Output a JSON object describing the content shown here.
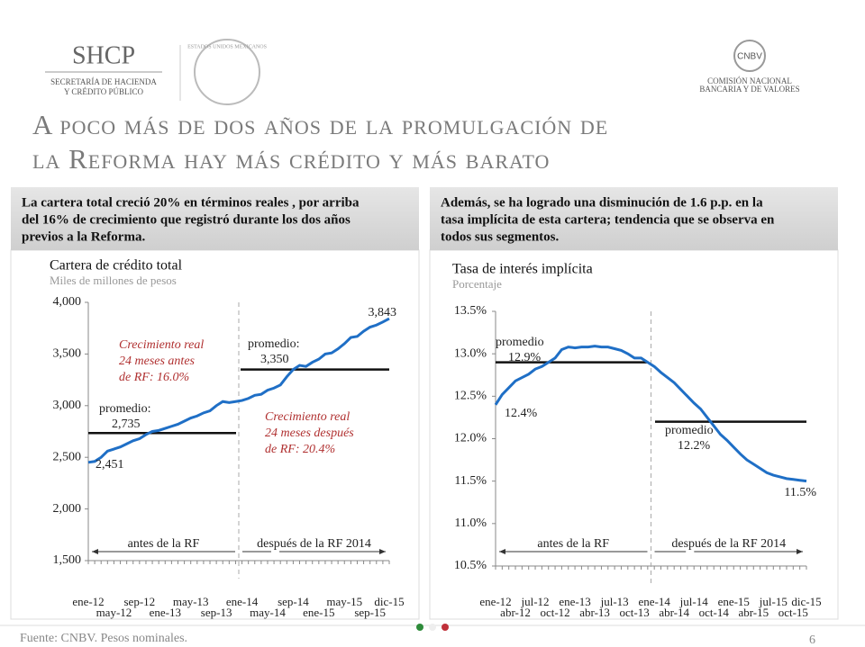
{
  "header": {
    "org": "SHCP",
    "org_sub1": "SECRETARÍA DE HACIENDA",
    "org_sub2": "Y CRÉDITO PÚBLICO",
    "seal": "ESTADOS UNIDOS MEXICANOS",
    "cnbv": "CNBV",
    "cnbv_sub1": "COMISIÓN NACIONAL",
    "cnbv_sub2": "BANCARIA Y DE VALORES"
  },
  "title_lines": [
    "A poco más de dos años de la promulgación de",
    "la Reforma hay más crédito y más barato"
  ],
  "panels": [
    {
      "lines": [
        "La cartera total creció 20% en términos reales , por arriba",
        "del 16% de crecimiento que registró durante los dos años",
        "previos a la Reforma."
      ]
    },
    {
      "lines": [
        "Además, se ha logrado una disminución de 1.6 p.p. en la",
        "tasa implícita de esta cartera; tendencia que se observa en",
        "todos sus segmentos."
      ]
    }
  ],
  "chart_data": [
    {
      "type": "line",
      "title": "Cartera de crédito total",
      "subtitle": "Miles de millones de pesos",
      "categories": [
        "ene-12",
        null,
        null,
        null,
        "may-12",
        null,
        null,
        null,
        "sep-12",
        null,
        null,
        null,
        "ene-13",
        null,
        null,
        null,
        "may-13",
        null,
        null,
        null,
        "sep-13",
        null,
        null,
        null,
        "ene-14",
        null,
        null,
        null,
        "may-14",
        null,
        null,
        null,
        "sep-14",
        null,
        null,
        null,
        "ene-15",
        null,
        null,
        null,
        "may-15",
        null,
        null,
        null,
        "sep-15",
        null,
        null,
        "dic-15"
      ],
      "series": [
        {
          "color": "#1f6fc6",
          "values": [
            2451,
            2460,
            2500,
            2560,
            2580,
            2600,
            2630,
            2660,
            2680,
            2720,
            2750,
            2760,
            2780,
            2800,
            2820,
            2850,
            2880,
            2900,
            2930,
            2950,
            3000,
            3040,
            3030,
            3040,
            3050,
            3070,
            3100,
            3110,
            3150,
            3170,
            3200,
            3280,
            3350,
            3390,
            3380,
            3420,
            3450,
            3500,
            3510,
            3550,
            3600,
            3660,
            3670,
            3720,
            3760,
            3780,
            3810,
            3843
          ],
          "value_labels": [
            "2,451",
            null,
            null,
            null,
            null,
            null,
            null,
            null,
            null,
            null,
            null,
            null,
            null,
            null,
            null,
            null,
            null,
            null,
            null,
            null,
            null,
            null,
            null,
            null,
            null,
            null,
            null,
            null,
            null,
            null,
            null,
            null,
            null,
            null,
            null,
            null,
            null,
            null,
            null,
            null,
            null,
            null,
            null,
            null,
            null,
            null,
            null,
            "3,843"
          ]
        }
      ],
      "ylim": [
        1500,
        4000
      ],
      "yticks": [
        {
          "value": 1500,
          "label": "1,500"
        },
        {
          "value": 2000,
          "label": "2,000"
        },
        {
          "value": 2500,
          "label": "2,500"
        },
        {
          "value": 3000,
          "label": "3,000"
        },
        {
          "value": 3500,
          "label": "3,500"
        },
        {
          "value": 4000,
          "label": "4,000"
        }
      ],
      "averages": [
        {
          "label": "promedio:",
          "value": 2735,
          "value_label": "2,735"
        },
        {
          "label": "promedio:",
          "value": 3350,
          "value_label": "3,350"
        }
      ],
      "annotations": [
        {
          "lines": [
            "Crecimiento real",
            "24 meses antes",
            "de RF: 16.0%"
          ]
        },
        {
          "lines": [
            "Crecimiento real",
            "24 meses después",
            "de RF: 20.4%"
          ]
        }
      ],
      "periods": [
        "antes de la RF",
        "después de la RF 2014"
      ]
    },
    {
      "type": "line",
      "title": "Tasa de interés implícita",
      "subtitle": "Porcentaje",
      "categories": [
        "ene-12",
        null,
        null,
        "abr-12",
        null,
        null,
        "jul-12",
        null,
        null,
        "oct-12",
        null,
        null,
        "ene-13",
        null,
        null,
        "abr-13",
        null,
        null,
        "jul-13",
        null,
        null,
        "oct-13",
        null,
        null,
        "ene-14",
        null,
        null,
        "abr-14",
        null,
        null,
        "jul-14",
        null,
        null,
        "oct-14",
        null,
        null,
        "ene-15",
        null,
        null,
        "abr-15",
        null,
        null,
        "jul-15",
        null,
        null,
        "oct-15",
        null,
        "dic-15"
      ],
      "series": [
        {
          "color": "#1f6fc6",
          "values": [
            12.4,
            12.52,
            12.6,
            12.68,
            12.72,
            12.76,
            12.82,
            12.85,
            12.9,
            12.95,
            13.05,
            13.08,
            13.07,
            13.08,
            13.08,
            13.09,
            13.08,
            13.08,
            13.06,
            13.04,
            13.0,
            12.95,
            12.95,
            12.9,
            12.85,
            12.78,
            12.72,
            12.66,
            12.58,
            12.5,
            12.42,
            12.35,
            12.25,
            12.15,
            12.05,
            11.98,
            11.9,
            11.82,
            11.75,
            11.7,
            11.65,
            11.6,
            11.57,
            11.55,
            11.53,
            11.52,
            11.51,
            11.5
          ],
          "value_labels": [
            "12.4%",
            null,
            null,
            null,
            null,
            null,
            null,
            null,
            null,
            null,
            null,
            null,
            null,
            null,
            null,
            null,
            null,
            null,
            null,
            null,
            null,
            null,
            null,
            null,
            null,
            null,
            null,
            null,
            null,
            null,
            null,
            null,
            null,
            null,
            null,
            null,
            null,
            null,
            null,
            null,
            null,
            null,
            null,
            null,
            null,
            null,
            null,
            "11.5%"
          ]
        }
      ],
      "ylim": [
        10.5,
        13.5
      ],
      "yticks": [
        {
          "value": 10.5,
          "label": "10.5%"
        },
        {
          "value": 11,
          "label": "11.0%"
        },
        {
          "value": 11.5,
          "label": "11.5%"
        },
        {
          "value": 12,
          "label": "12.0%"
        },
        {
          "value": 12.5,
          "label": "12.5%"
        },
        {
          "value": 13,
          "label": "13.0%"
        },
        {
          "value": 13.5,
          "label": "13.5%"
        }
      ],
      "averages": [
        {
          "label": "promedio",
          "value": 12.9,
          "value_label": "12.9%"
        },
        {
          "label": "promedio",
          "value": 12.2,
          "value_label": "12.2%"
        }
      ],
      "periods": [
        "antes de la RF",
        "después de la RF 2014"
      ]
    }
  ],
  "footer": {
    "source": "Fuente: CNBV. Pesos nominales.",
    "page": "6"
  }
}
